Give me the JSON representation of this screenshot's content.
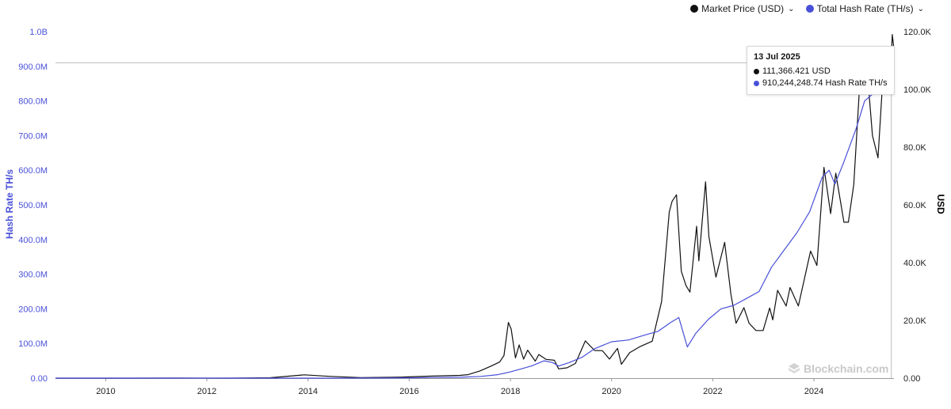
{
  "legend": {
    "price_label": "Market Price (USD)",
    "hash_label": "Total Hash Rate (TH/s)",
    "chevron": "⌄"
  },
  "colors": {
    "price": "#111111",
    "hash": "#4850d8",
    "axis_left": "#4850d8",
    "grid": "#bdbdbd"
  },
  "tooltip": {
    "date": "13 Jul 2025",
    "price_text": "111,366.421 USD",
    "hash_text": "910,244,248.74 Hash Rate TH/s"
  },
  "watermark": {
    "icon": "blockchain-logo-icon",
    "text": "Blockchain.com"
  },
  "chart_data": {
    "type": "line",
    "title": "",
    "xlabel": "",
    "x_ticks": [
      "2010",
      "2012",
      "2014",
      "2016",
      "2018",
      "2020",
      "2022",
      "2024"
    ],
    "xlim": [
      "2009-01-03",
      "2025-08-01"
    ],
    "y_left": {
      "label": "Hash Rate TH/s",
      "ticks": [
        "0.00",
        "100.0M",
        "200.0M",
        "300.0M",
        "400.0M",
        "500.0M",
        "600.0M",
        "700.0M",
        "800.0M",
        "900.0M",
        "1.0B"
      ],
      "ylim": [
        0,
        1000000000
      ]
    },
    "y_right": {
      "label": "USD",
      "ticks": [
        "0.00",
        "20.0K",
        "40.0K",
        "60.0K",
        "80.0K",
        "100.0K",
        "120.0K"
      ],
      "ylim": [
        0,
        120000
      ]
    },
    "grid": false,
    "legend_position": "top-right",
    "series": [
      {
        "name": "Market Price (USD)",
        "axis": "right",
        "points": [
          [
            "2009-01-03",
            0
          ],
          [
            "2010-07-01",
            0.07
          ],
          [
            "2011-06-10",
            20
          ],
          [
            "2012-06-01",
            5
          ],
          [
            "2013-04-01",
            130
          ],
          [
            "2013-12-04",
            1150
          ],
          [
            "2014-06-01",
            630
          ],
          [
            "2015-01-15",
            200
          ],
          [
            "2015-11-01",
            350
          ],
          [
            "2016-06-15",
            700
          ],
          [
            "2016-12-31",
            960
          ],
          [
            "2017-03-01",
            1200
          ],
          [
            "2017-05-25",
            2500
          ],
          [
            "2017-08-15",
            4200
          ],
          [
            "2017-10-15",
            5600
          ],
          [
            "2017-11-15",
            7800
          ],
          [
            "2017-12-17",
            19300
          ],
          [
            "2018-01-06",
            17000
          ],
          [
            "2018-02-06",
            7000
          ],
          [
            "2018-03-05",
            11500
          ],
          [
            "2018-04-06",
            6600
          ],
          [
            "2018-05-05",
            9700
          ],
          [
            "2018-06-29",
            5900
          ],
          [
            "2018-07-25",
            8200
          ],
          [
            "2018-09-15",
            6500
          ],
          [
            "2018-11-14",
            6200
          ],
          [
            "2018-12-15",
            3200
          ],
          [
            "2019-02-15",
            3600
          ],
          [
            "2019-04-15",
            5100
          ],
          [
            "2019-06-26",
            12900
          ],
          [
            "2019-09-01",
            9600
          ],
          [
            "2019-10-27",
            9500
          ],
          [
            "2019-12-17",
            6600
          ],
          [
            "2020-02-13",
            10300
          ],
          [
            "2020-03-12",
            4800
          ],
          [
            "2020-05-10",
            8800
          ],
          [
            "2020-07-27",
            11000
          ],
          [
            "2020-10-21",
            12800
          ],
          [
            "2020-12-27",
            26500
          ],
          [
            "2021-01-15",
            37000
          ],
          [
            "2021-02-21",
            57500
          ],
          [
            "2021-03-13",
            61200
          ],
          [
            "2021-04-14",
            63500
          ],
          [
            "2021-05-19",
            37000
          ],
          [
            "2021-06-22",
            32000
          ],
          [
            "2021-07-20",
            29800
          ],
          [
            "2021-09-06",
            52600
          ],
          [
            "2021-09-22",
            40600
          ],
          [
            "2021-11-10",
            68000
          ],
          [
            "2021-12-04",
            49000
          ],
          [
            "2022-01-24",
            35000
          ],
          [
            "2022-03-28",
            47000
          ],
          [
            "2022-05-12",
            29000
          ],
          [
            "2022-06-18",
            19000
          ],
          [
            "2022-08-14",
            24400
          ],
          [
            "2022-09-20",
            19000
          ],
          [
            "2022-11-09",
            16500
          ],
          [
            "2022-12-30",
            16500
          ],
          [
            "2023-02-16",
            24300
          ],
          [
            "2023-03-10",
            20200
          ],
          [
            "2023-04-14",
            30400
          ],
          [
            "2023-06-15",
            25000
          ],
          [
            "2023-07-13",
            31400
          ],
          [
            "2023-09-11",
            25000
          ],
          [
            "2023-10-25",
            34500
          ],
          [
            "2023-12-08",
            44000
          ],
          [
            "2024-01-23",
            39000
          ],
          [
            "2024-03-14",
            73000
          ],
          [
            "2024-05-01",
            57000
          ],
          [
            "2024-06-07",
            71000
          ],
          [
            "2024-08-05",
            54000
          ],
          [
            "2024-09-06",
            54000
          ],
          [
            "2024-10-15",
            67000
          ],
          [
            "2024-11-22",
            98000
          ],
          [
            "2024-12-17",
            106000
          ],
          [
            "2025-01-21",
            106000
          ],
          [
            "2025-02-27",
            84000
          ],
          [
            "2025-04-08",
            76300
          ],
          [
            "2025-05-22",
            111000
          ],
          [
            "2025-06-22",
            101000
          ],
          [
            "2025-07-13",
            111366
          ],
          [
            "2025-07-20",
            119000
          ],
          [
            "2025-08-01",
            114000
          ]
        ]
      },
      {
        "name": "Total Hash Rate (TH/s)",
        "axis": "left",
        "points": [
          [
            "2009-01-03",
            0
          ],
          [
            "2013-06-01",
            100
          ],
          [
            "2014-01-01",
            10000
          ],
          [
            "2014-06-01",
            100000
          ],
          [
            "2015-01-01",
            300000
          ],
          [
            "2016-01-01",
            800000
          ],
          [
            "2016-06-01",
            1500000
          ],
          [
            "2017-01-01",
            2500000
          ],
          [
            "2017-06-01",
            5000000
          ],
          [
            "2017-10-01",
            10000000
          ],
          [
            "2018-01-01",
            18000000
          ],
          [
            "2018-06-01",
            35000000
          ],
          [
            "2018-09-01",
            50000000
          ],
          [
            "2018-11-01",
            45000000
          ],
          [
            "2018-12-15",
            35000000
          ],
          [
            "2019-03-01",
            45000000
          ],
          [
            "2019-06-01",
            60000000
          ],
          [
            "2019-09-01",
            85000000
          ],
          [
            "2020-01-01",
            105000000
          ],
          [
            "2020-05-01",
            110000000
          ],
          [
            "2020-09-01",
            125000000
          ],
          [
            "2020-12-01",
            135000000
          ],
          [
            "2021-03-01",
            160000000
          ],
          [
            "2021-05-01",
            175000000
          ],
          [
            "2021-07-01",
            90000000
          ],
          [
            "2021-09-01",
            130000000
          ],
          [
            "2021-12-01",
            170000000
          ],
          [
            "2022-03-01",
            200000000
          ],
          [
            "2022-06-01",
            210000000
          ],
          [
            "2022-09-01",
            230000000
          ],
          [
            "2022-12-01",
            250000000
          ],
          [
            "2023-03-01",
            320000000
          ],
          [
            "2023-06-01",
            370000000
          ],
          [
            "2023-09-01",
            420000000
          ],
          [
            "2023-12-01",
            480000000
          ],
          [
            "2024-03-01",
            580000000
          ],
          [
            "2024-04-20",
            600000000
          ],
          [
            "2024-06-01",
            560000000
          ],
          [
            "2024-08-01",
            620000000
          ],
          [
            "2024-11-01",
            720000000
          ],
          [
            "2025-01-01",
            800000000
          ],
          [
            "2025-03-01",
            820000000
          ],
          [
            "2025-05-01",
            850000000
          ],
          [
            "2025-06-15",
            860000000
          ],
          [
            "2025-07-13",
            910244249
          ],
          [
            "2025-08-01",
            940000000
          ]
        ]
      }
    ]
  }
}
